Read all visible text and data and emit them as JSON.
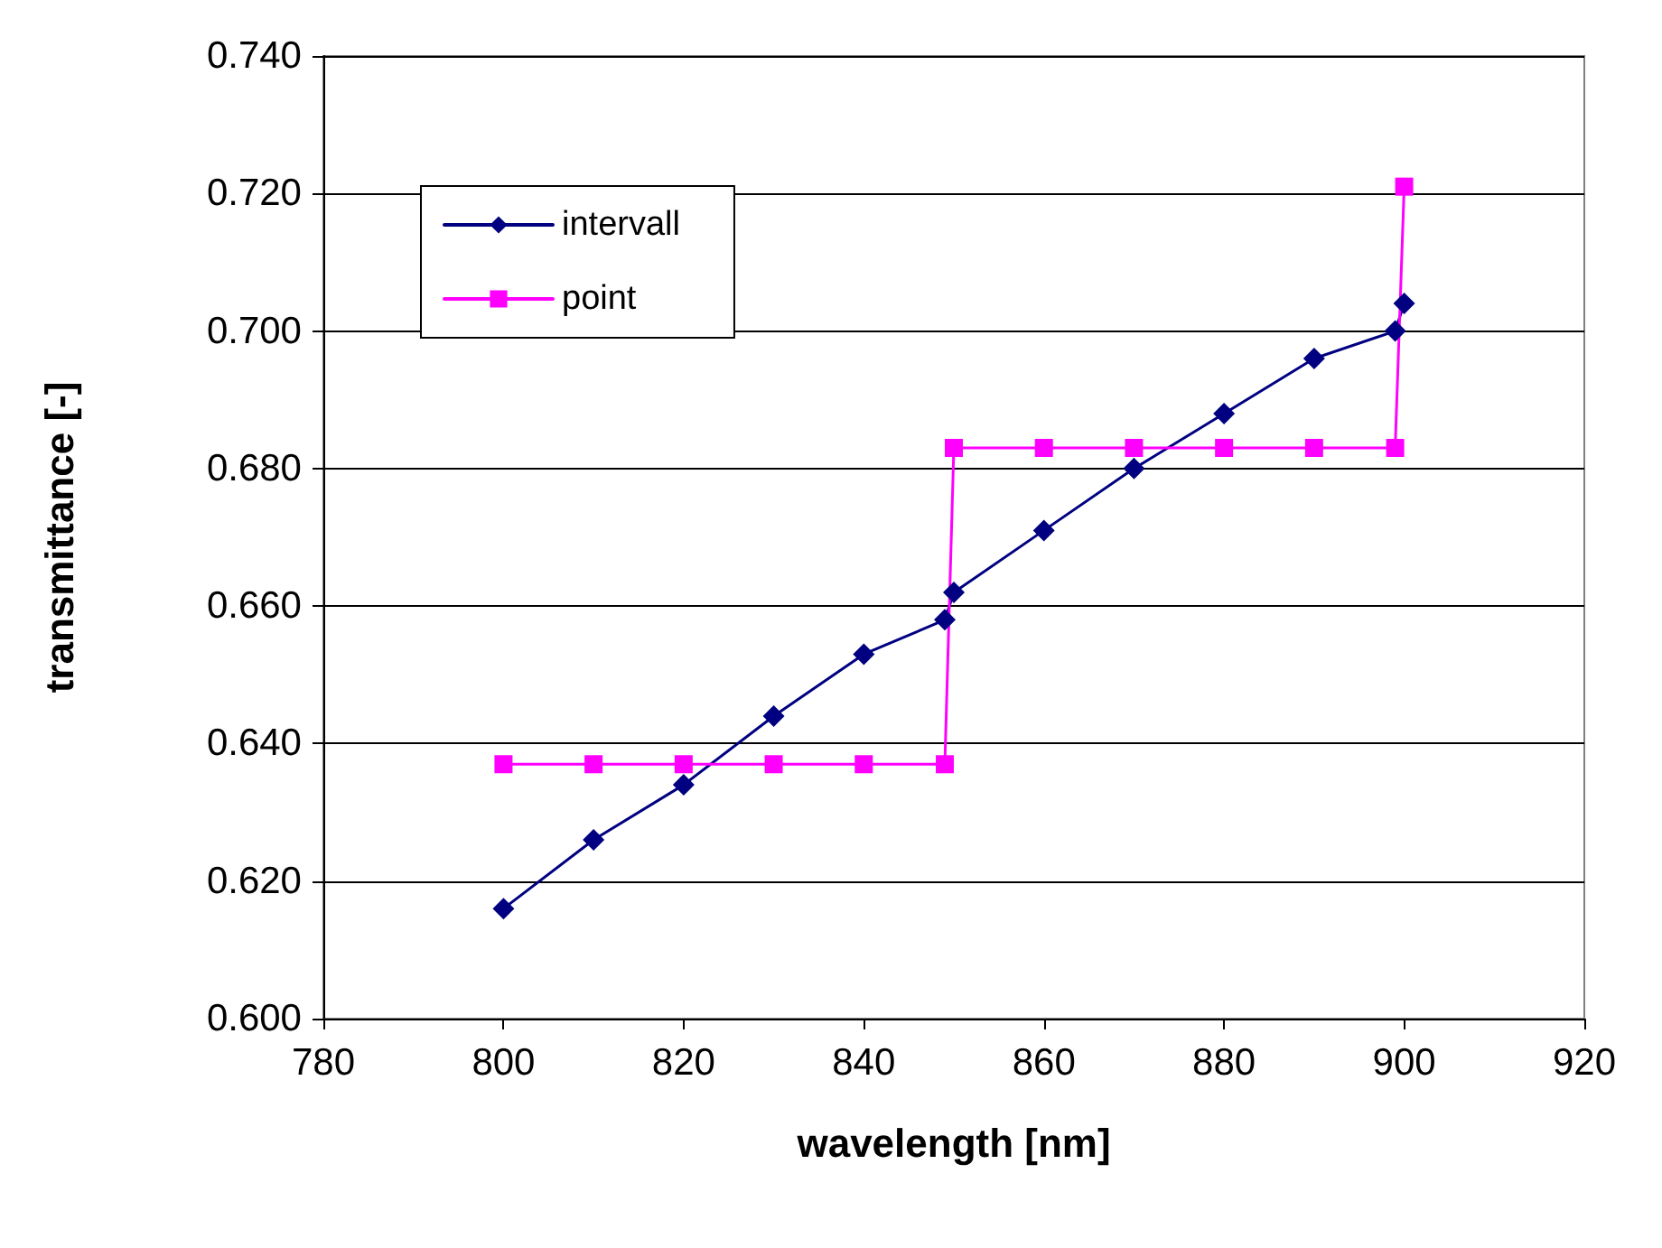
{
  "chart_data": {
    "type": "line",
    "xlabel": "wavelength [nm]",
    "ylabel": "transmittance [-]",
    "xlim": [
      780,
      920
    ],
    "xticks": [
      780,
      800,
      820,
      840,
      860,
      880,
      900,
      920
    ],
    "ylim": [
      0.6,
      0.74
    ],
    "yticks": [
      {
        "value": 0.6,
        "label": "0.600"
      },
      {
        "value": 0.62,
        "label": "0.620"
      },
      {
        "value": 0.64,
        "label": "0.640"
      },
      {
        "value": 0.66,
        "label": "0.660"
      },
      {
        "value": 0.68,
        "label": "0.680"
      },
      {
        "value": 0.7,
        "label": "0.700"
      },
      {
        "value": 0.72,
        "label": "0.720"
      },
      {
        "value": 0.74,
        "label": "0.740"
      }
    ],
    "grid": "y",
    "legend": "top left",
    "series": [
      {
        "name": "intervall",
        "color": "#000080",
        "marker": "diamond",
        "x": [
          800,
          810,
          820,
          830,
          840,
          849,
          850,
          860,
          870,
          880,
          890,
          899,
          900
        ],
        "values": [
          0.616,
          0.626,
          0.634,
          0.644,
          0.653,
          0.658,
          0.662,
          0.671,
          0.68,
          0.688,
          0.696,
          0.7,
          0.704
        ]
      },
      {
        "name": "point",
        "color": "#ff00ff",
        "marker": "square",
        "x": [
          800,
          810,
          820,
          830,
          840,
          849,
          850,
          860,
          870,
          880,
          890,
          899,
          900
        ],
        "values": [
          0.637,
          0.637,
          0.637,
          0.637,
          0.637,
          0.637,
          0.683,
          0.683,
          0.683,
          0.683,
          0.683,
          0.683,
          0.721
        ]
      }
    ]
  }
}
